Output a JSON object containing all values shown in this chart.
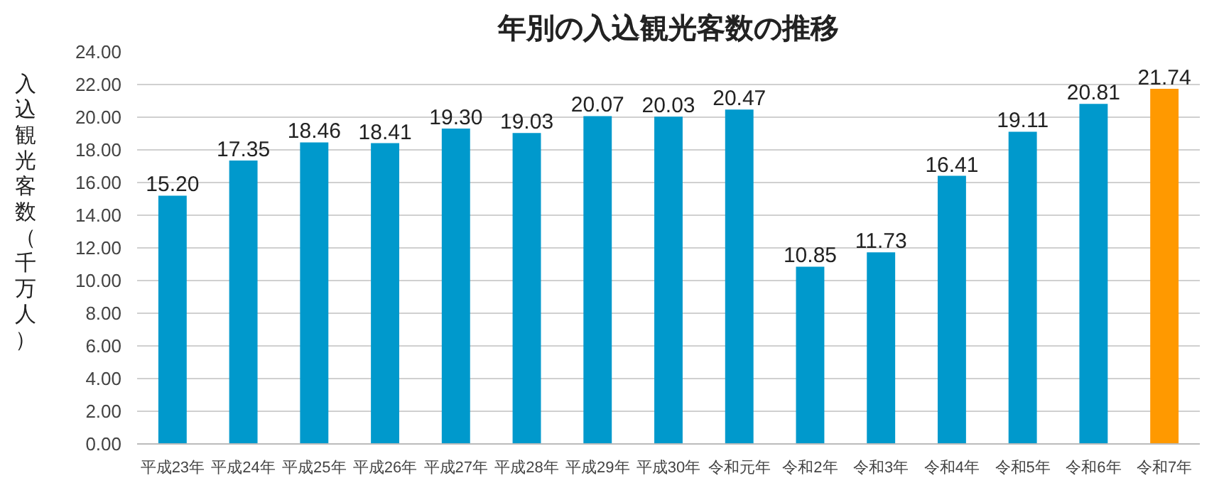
{
  "chart_data": {
    "type": "bar",
    "title": "年別の入込観光客数の推移",
    "ylabel": "入込観光客数（千万人）",
    "categories": [
      "平成23年",
      "平成24年",
      "平成25年",
      "平成26年",
      "平成27年",
      "平成28年",
      "平成29年",
      "平成30年",
      "令和元年",
      "令和2年",
      "令和3年",
      "令和4年",
      "令和5年",
      "令和6年",
      "令和7年"
    ],
    "values": [
      15.2,
      17.35,
      18.46,
      18.41,
      19.3,
      19.03,
      20.07,
      20.03,
      20.47,
      10.85,
      11.73,
      16.41,
      19.11,
      20.81,
      21.74
    ],
    "value_labels": [
      "15.20",
      "17.35",
      "18.46",
      "18.41",
      "19.30",
      "19.03",
      "20.07",
      "20.03",
      "20.47",
      "10.85",
      "11.73",
      "16.41",
      "19.11",
      "20.81",
      "21.74"
    ],
    "colors": [
      "#0099cc",
      "#0099cc",
      "#0099cc",
      "#0099cc",
      "#0099cc",
      "#0099cc",
      "#0099cc",
      "#0099cc",
      "#0099cc",
      "#0099cc",
      "#0099cc",
      "#0099cc",
      "#0099cc",
      "#0099cc",
      "#ff9900"
    ],
    "ylim": [
      0,
      24
    ],
    "yticks": [
      {
        "value": 0,
        "label": "0.00"
      },
      {
        "value": 2,
        "label": "2.00"
      },
      {
        "value": 4,
        "label": "4.00"
      },
      {
        "value": 6,
        "label": "6.00"
      },
      {
        "value": 8,
        "label": "8.00"
      },
      {
        "value": 10,
        "label": "10.00"
      },
      {
        "value": 12,
        "label": "12.00"
      },
      {
        "value": 14,
        "label": "14.00"
      },
      {
        "value": 16,
        "label": "16.00"
      },
      {
        "value": 18,
        "label": "18.00"
      },
      {
        "value": 20,
        "label": "20.00"
      },
      {
        "value": 22,
        "label": "22.00"
      },
      {
        "value": 24,
        "label": "24.00"
      }
    ],
    "grid": "y"
  }
}
